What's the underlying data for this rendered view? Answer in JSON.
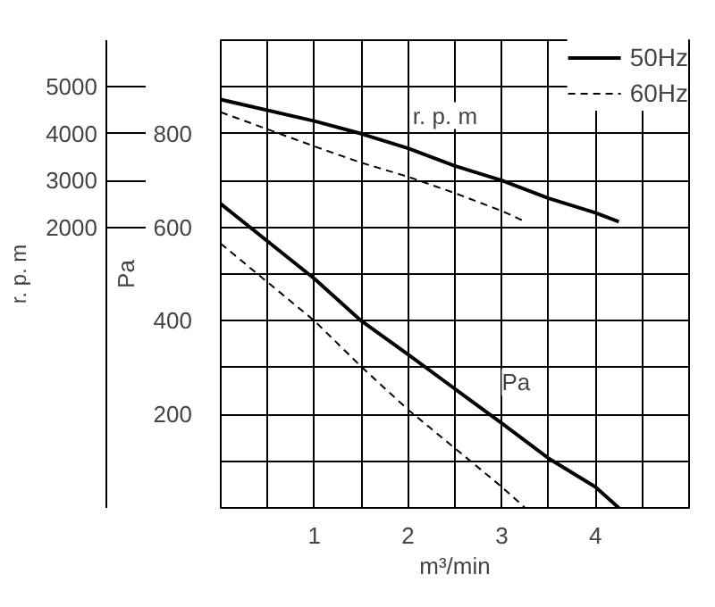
{
  "chart_data": {
    "type": "line",
    "xlabel": "m³/min",
    "ylabel": "Pa",
    "y2label": "r. p. m",
    "xlim": [
      0,
      5
    ],
    "xticks": [
      {
        "value": 0.5,
        "label": null
      },
      1,
      {
        "value": 1.5,
        "label": null
      },
      2,
      {
        "value": 2.5,
        "label": null
      },
      3,
      {
        "value": 3.5,
        "label": null
      },
      4,
      {
        "value": 4.5,
        "label": null
      }
    ],
    "ylim": [
      0,
      1000
    ],
    "yticks": [
      {
        "value": 100,
        "label": null
      },
      200,
      {
        "value": 300,
        "label": null
      },
      400,
      {
        "value": 500,
        "label": null
      },
      600,
      {
        "value": 700,
        "label": null
      },
      800,
      {
        "value": 900,
        "label": null
      }
    ],
    "y2lim": [
      -4000,
      6000
    ],
    "y2ticks": [
      2000,
      3000,
      4000,
      5000
    ],
    "grid": true,
    "legend": "top right",
    "series": [
      {
        "name": "50Hz",
        "color": "#000000",
        "line_style": "solid",
        "axis": "y2",
        "x": [
          0,
          1,
          1.5,
          2,
          2.5,
          3,
          3.5,
          4,
          4.25
        ],
        "values": [
          4730,
          4270,
          4000,
          3690,
          3310,
          3000,
          2620,
          2310,
          2120
        ]
      },
      {
        "name": "60Hz",
        "color": "#000000",
        "line_style": "dashed",
        "axis": "y2",
        "x": [
          0,
          1,
          1.5,
          2,
          2.5,
          3,
          3.25
        ],
        "values": [
          4460,
          3730,
          3380,
          3080,
          2730,
          2350,
          2120
        ]
      },
      {
        "color": "#000000",
        "line_style": "solid",
        "x": [
          0,
          1,
          1.5,
          2,
          3,
          3.5,
          4,
          4.25
        ],
        "values": [
          650,
          490,
          400,
          328,
          181,
          106,
          45,
          0
        ]
      },
      {
        "color": "#000000",
        "line_style": "dashed",
        "x": [
          0,
          1,
          1.5,
          2,
          3,
          3.25
        ],
        "values": [
          565,
          400,
          302,
          210,
          45,
          0
        ]
      }
    ],
    "annotations": [
      "r. p. m",
      "Pa"
    ]
  }
}
